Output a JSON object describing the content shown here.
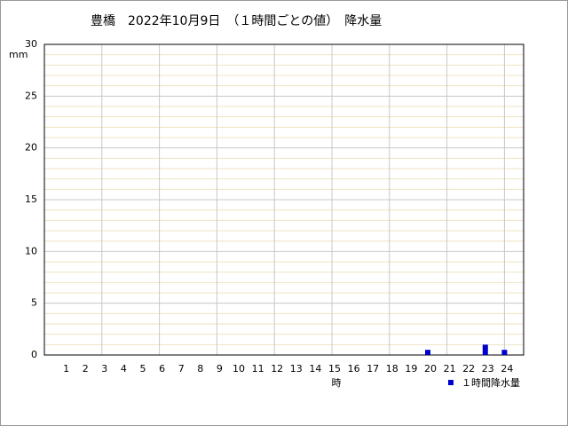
{
  "chart_data": {
    "type": "bar",
    "title": "豊橋　2022年10月9日　（１時間ごとの値）　降水量",
    "y_label": "mm",
    "x_label": "時",
    "categories": [
      "1",
      "2",
      "3",
      "4",
      "5",
      "6",
      "7",
      "8",
      "9",
      "10",
      "11",
      "12",
      "13",
      "14",
      "15",
      "16",
      "17",
      "18",
      "19",
      "20",
      "21",
      "22",
      "23",
      "24"
    ],
    "series": [
      {
        "name": "１時間降水量",
        "color": "#0000cc",
        "values": [
          0,
          0,
          0,
          0,
          0,
          0,
          0,
          0,
          0,
          0,
          0,
          0,
          0,
          0,
          0,
          0,
          0,
          0,
          0,
          0.5,
          0,
          0,
          1.0,
          0.5
        ]
      }
    ],
    "ylim": [
      0,
      30
    ],
    "yticks": [
      0,
      5,
      10,
      15,
      20,
      25,
      30
    ],
    "minor_yticks": [
      1,
      2,
      3,
      4,
      6,
      7,
      8,
      9,
      11,
      12,
      13,
      14,
      16,
      17,
      18,
      19,
      21,
      22,
      23,
      24,
      26,
      27,
      28,
      29
    ],
    "grid": true
  }
}
